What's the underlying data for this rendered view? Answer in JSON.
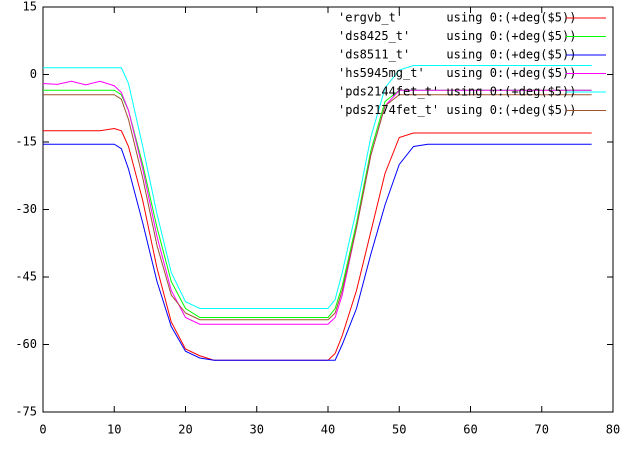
{
  "chart_data": {
    "type": "line",
    "x": [
      0,
      2,
      4,
      6,
      8,
      10,
      11,
      12,
      14,
      16,
      18,
      20,
      22,
      24,
      30,
      35,
      40,
      41,
      42,
      44,
      46,
      48,
      50,
      52,
      54,
      60,
      70,
      77
    ],
    "series": [
      {
        "name": "'ergvb_t'      using 0:(+deg($5))",
        "color": "#ff0000",
        "values": [
          -12.5,
          -12.5,
          -12.5,
          -12.5,
          -12.5,
          -12,
          -12.5,
          -16,
          -28,
          -43,
          -55,
          -61,
          -62.5,
          -63.5,
          -63.5,
          -63.5,
          -63.5,
          -62,
          -58,
          -48,
          -35,
          -22,
          -14,
          -13,
          -13,
          -13,
          -13,
          -13
        ]
      },
      {
        "name": "'ds8425_t'     using 0:(+deg($5))",
        "color": "#00ff00",
        "values": [
          -3.5,
          -3.5,
          -3.5,
          -3.5,
          -3.5,
          -3.5,
          -4.5,
          -8,
          -20,
          -34,
          -46,
          -52,
          -54,
          -54,
          -54,
          -54,
          -54,
          -52,
          -47,
          -33,
          -17,
          -6,
          -3.5,
          -3.5,
          -3.5,
          -3.5,
          -3.5,
          -3.5
        ]
      },
      {
        "name": "'ds8511_t'     using 0:(+deg($5))",
        "color": "#0000ff",
        "values": [
          -15.5,
          -15.5,
          -15.5,
          -15.5,
          -15.5,
          -15.5,
          -16.5,
          -21,
          -33,
          -46,
          -56,
          -61.5,
          -63,
          -63.5,
          -63.5,
          -63.5,
          -63.5,
          -63.5,
          -60,
          -52,
          -40,
          -29,
          -20,
          -16,
          -15.5,
          -15.5,
          -15.5,
          -15.5
        ]
      },
      {
        "name": "'hs5945mg_t'   using 0:(+deg($5))",
        "color": "#ff00ff",
        "values": [
          -2,
          -2.2,
          -1.5,
          -2.3,
          -1.5,
          -2.5,
          -4,
          -8,
          -21,
          -36,
          -48,
          -54,
          -55.5,
          -55.5,
          -55.5,
          -55.5,
          -55.5,
          -54,
          -49,
          -34,
          -18,
          -7,
          -3.5,
          -3.5,
          -3.5,
          -3.5,
          -3.5,
          -3.5
        ]
      },
      {
        "name": "'pds2144fet_t' using 0:(+deg($5))",
        "color": "#00ffff",
        "values": [
          1.5,
          1.5,
          1.5,
          1.5,
          1.5,
          1.5,
          1.5,
          -2,
          -16,
          -31,
          -44,
          -50.5,
          -52,
          -52,
          -52,
          -52,
          -52,
          -50,
          -44,
          -30,
          -14,
          -3,
          1,
          2,
          2,
          2,
          2,
          2
        ]
      },
      {
        "name": "'pds2174fet_t' using 0:(+deg($5))",
        "color": "#a0522d",
        "values": [
          -4.5,
          -4.5,
          -4.5,
          -4.5,
          -4.5,
          -4.5,
          -5.5,
          -10,
          -23,
          -38,
          -49,
          -53,
          -54.5,
          -54.5,
          -54.5,
          -54.5,
          -54.5,
          -53,
          -48,
          -34,
          -18,
          -7,
          -4.5,
          -4.5,
          -4.5,
          -4.5,
          -4.5,
          -4.5
        ]
      }
    ],
    "xlim": [
      0,
      80
    ],
    "xticks": [
      0,
      10,
      20,
      30,
      40,
      50,
      60,
      70,
      80
    ],
    "ylim": [
      -75,
      15
    ],
    "yticks": [
      -75,
      -60,
      -45,
      -30,
      -15,
      0,
      15
    ],
    "legend": "top-right"
  }
}
